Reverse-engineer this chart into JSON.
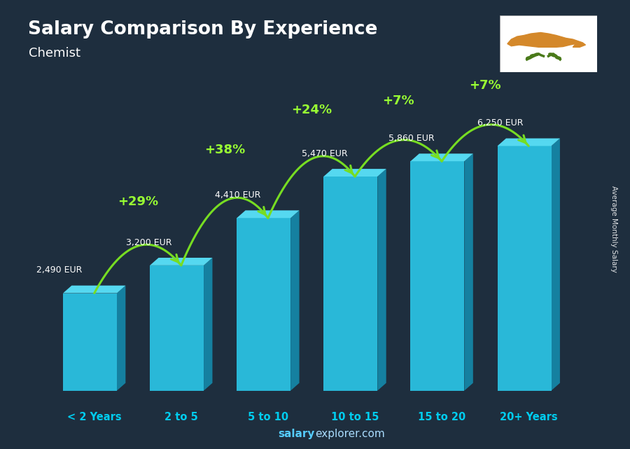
{
  "title": "Salary Comparison By Experience",
  "subtitle": "Chemist",
  "categories": [
    "< 2 Years",
    "2 to 5",
    "5 to 10",
    "10 to 15",
    "15 to 20",
    "20+ Years"
  ],
  "values": [
    2490,
    3200,
    4410,
    5470,
    5860,
    6250
  ],
  "value_labels": [
    "2,490 EUR",
    "3,200 EUR",
    "4,410 EUR",
    "5,470 EUR",
    "5,860 EUR",
    "6,250 EUR"
  ],
  "pct_changes": [
    "+29%",
    "+38%",
    "+24%",
    "+7%",
    "+7%"
  ],
  "bar_color_face": "#29b8d8",
  "bar_color_side": "#1580a0",
  "bar_color_top": "#55d8f0",
  "bg_color": "#1e2e3e",
  "title_color": "#ffffff",
  "subtitle_color": "#ffffff",
  "label_color": "#ffffff",
  "pct_color": "#99ff33",
  "arrow_color": "#77dd22",
  "xlabel_color": "#00ccee",
  "footer_color": "#aaddff",
  "footer_text": "salaryexplorer.com",
  "ylabel_text": "Average Monthly Salary",
  "ylim": [
    0,
    7800
  ],
  "flag_bg": "#ffffff",
  "flag_cyprus_color": "#d4882a",
  "flag_olive_color": "#4a7a1a"
}
